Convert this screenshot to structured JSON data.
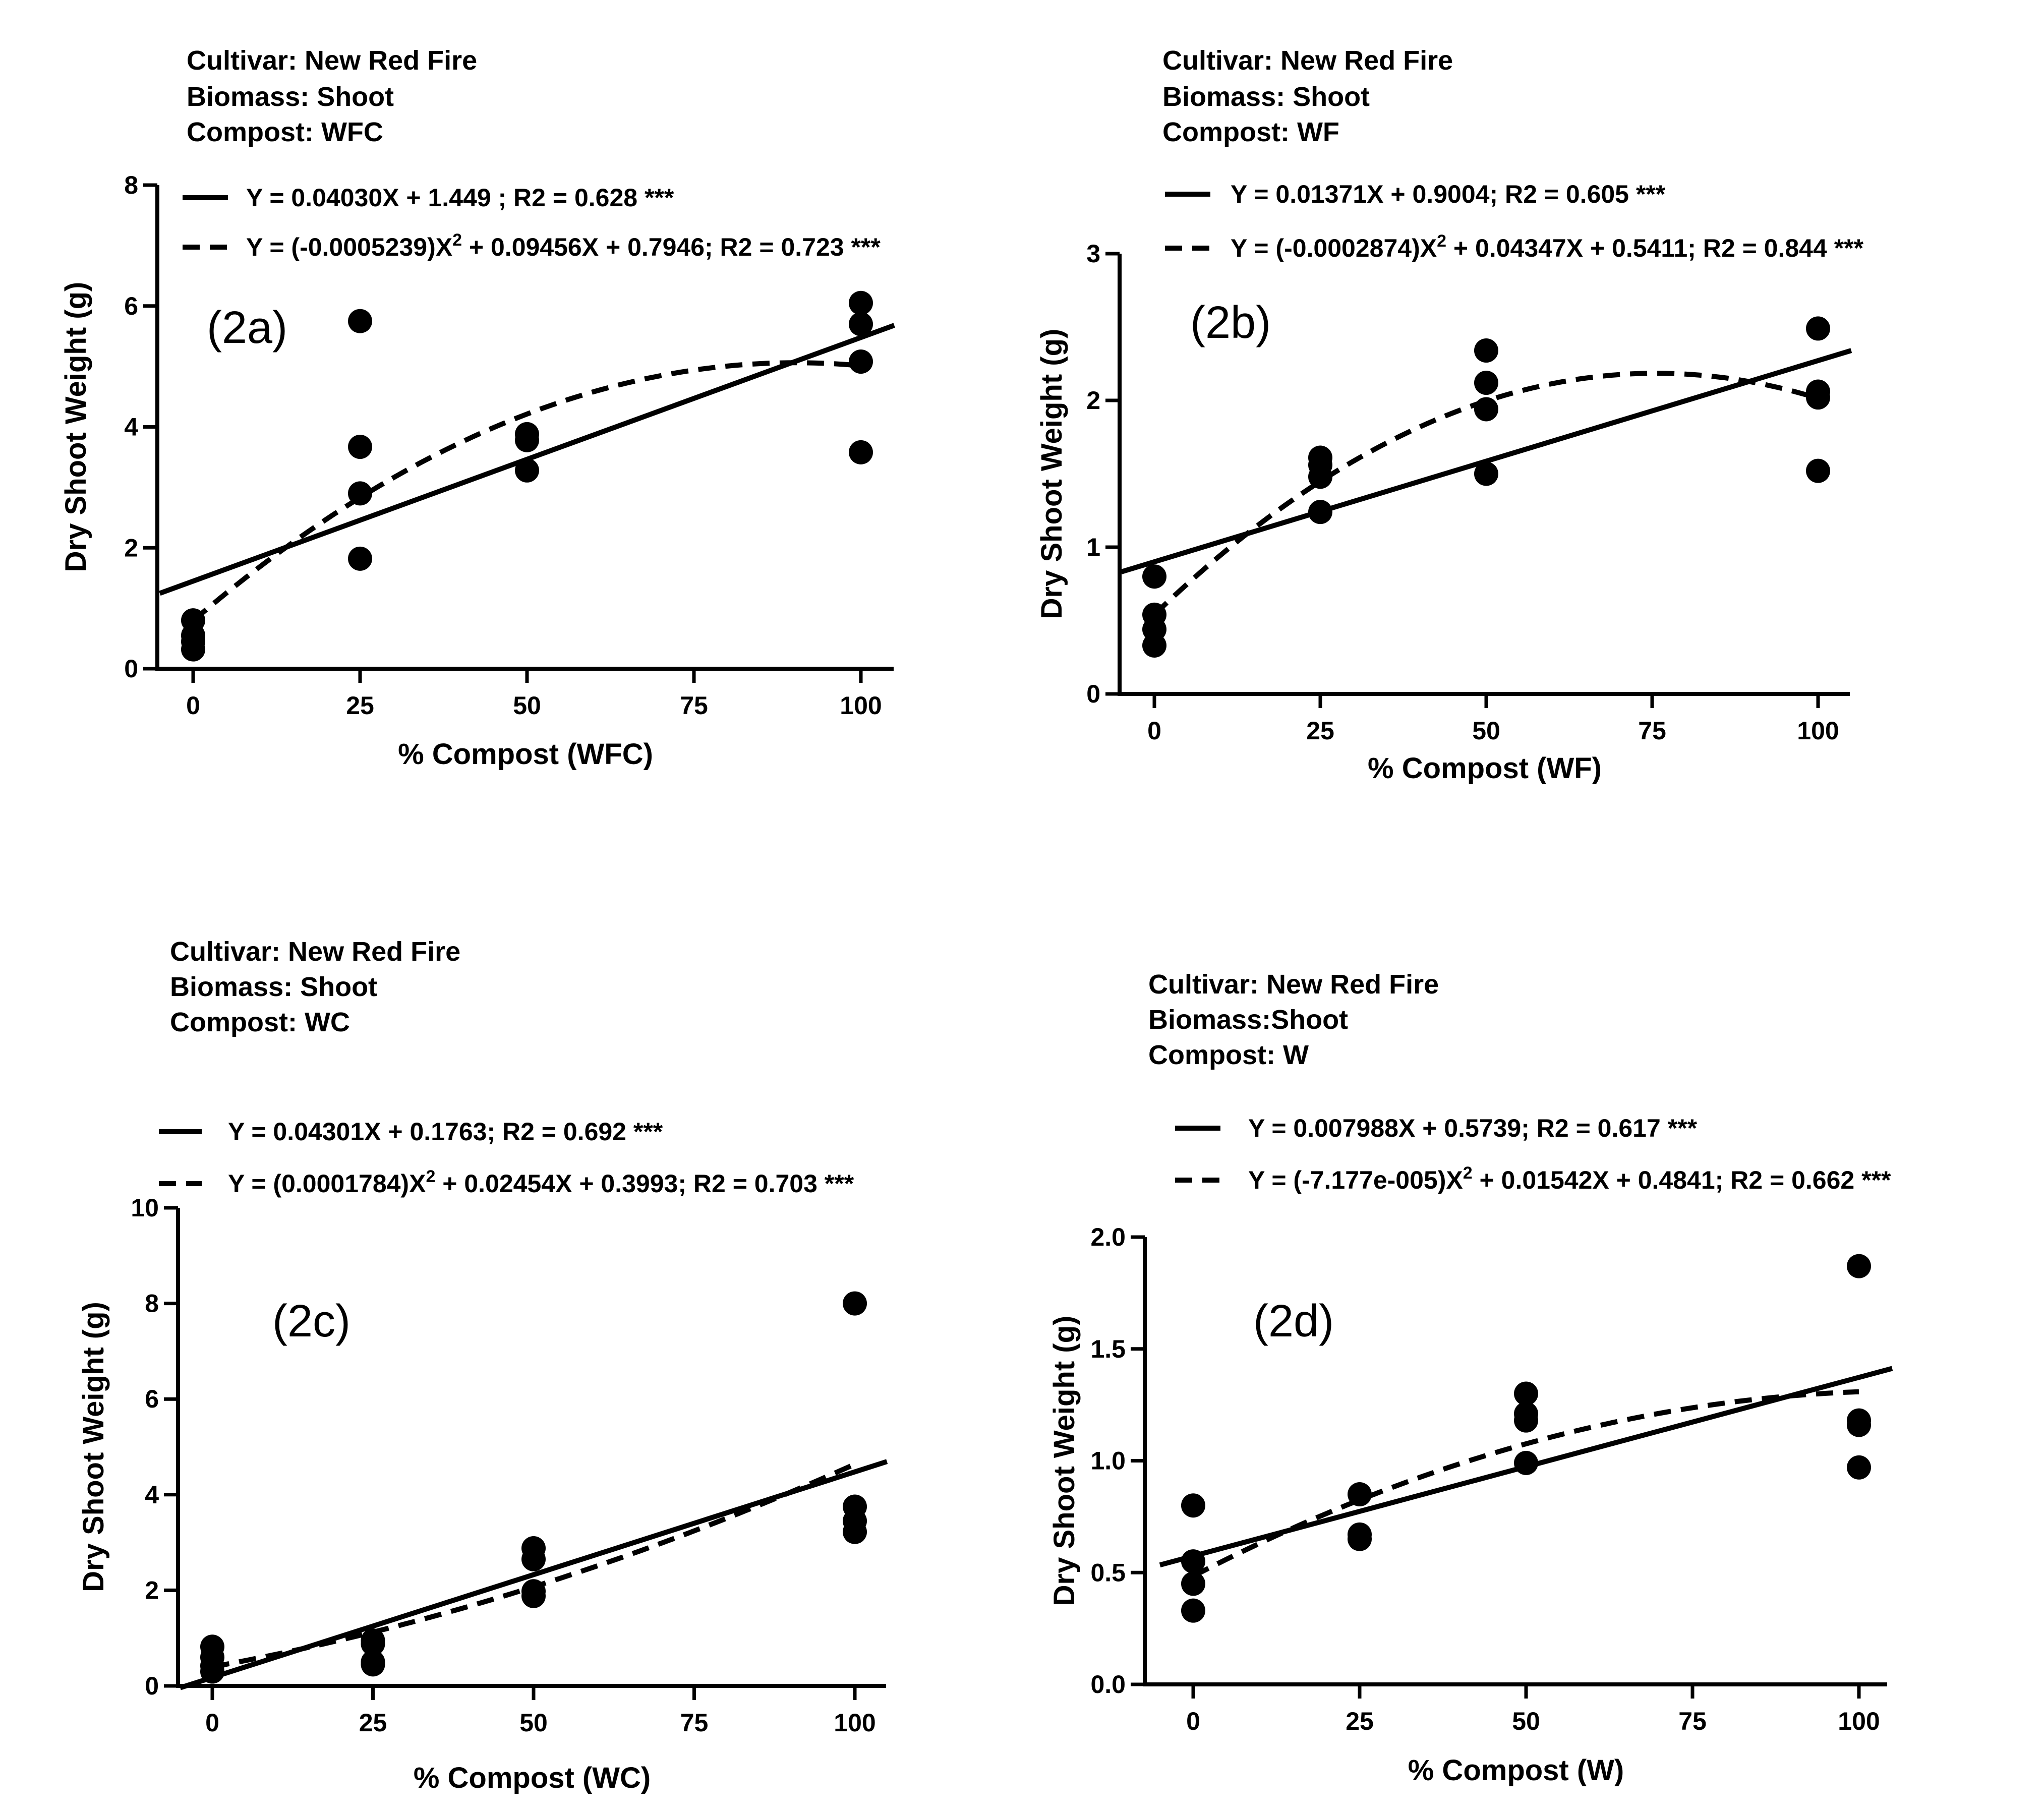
{
  "chart_data": [
    {
      "type": "scatter",
      "panel_label": "(2a)",
      "header": [
        "Cultivar: New Red Fire",
        "Biomass: Shoot",
        "Compost: WFC"
      ],
      "xlabel": "% Compost (WFC)",
      "ylabel": "Dry Shoot Weight (g)",
      "xlim": [
        -5,
        105
      ],
      "ylim": [
        0,
        8
      ],
      "xticks": [
        0,
        25,
        50,
        75,
        100
      ],
      "yticks": [
        0,
        2,
        4,
        6,
        8
      ],
      "ytick_labels": [
        "0",
        "2",
        "4",
        "6",
        "8"
      ],
      "legend": [
        {
          "style": "solid",
          "pre": "Y = 0.04030X + 1.449 ; R2 = 0.628 ***",
          "sup": "",
          "post": ""
        },
        {
          "style": "dashed",
          "pre": "Y = (-0.0005239)X",
          "sup": "2",
          "post": " + 0.09456X + 0.7946; R2 = 0.723 ***"
        }
      ],
      "linear": {
        "slope": 0.0403,
        "intercept": 1.449
      },
      "quadratic": {
        "a": -0.0005239,
        "b": 0.09456,
        "c": 0.7946
      },
      "points": [
        [
          0,
          0.8
        ],
        [
          0,
          0.55
        ],
        [
          0,
          0.45
        ],
        [
          0,
          0.32
        ],
        [
          25,
          5.75
        ],
        [
          25,
          3.67
        ],
        [
          25,
          2.9
        ],
        [
          25,
          1.82
        ],
        [
          50,
          3.88
        ],
        [
          50,
          3.78
        ],
        [
          50,
          3.28
        ],
        [
          100,
          6.05
        ],
        [
          100,
          5.7
        ],
        [
          100,
          5.08
        ],
        [
          100,
          3.58
        ]
      ]
    },
    {
      "type": "scatter",
      "panel_label": "(2b)",
      "header": [
        "Cultivar: New Red Fire",
        "Biomass: Shoot",
        "Compost: WF"
      ],
      "xlabel": "% Compost (WF)",
      "ylabel": "Dry Shoot Weight (g)",
      "xlim": [
        -5,
        105
      ],
      "ylim": [
        0,
        3
      ],
      "xticks": [
        0,
        25,
        50,
        75,
        100
      ],
      "yticks": [
        0,
        1,
        2,
        3
      ],
      "ytick_labels": [
        "0",
        "1",
        "2",
        "3"
      ],
      "legend": [
        {
          "style": "solid",
          "pre": "Y = 0.01371X + 0.9004; R2 = 0.605 ***",
          "sup": "",
          "post": ""
        },
        {
          "style": "dashed",
          "pre": "Y = (-0.0002874)X",
          "sup": "2",
          "post": " + 0.04347X + 0.5411; R2 = 0.844 ***"
        }
      ],
      "linear": {
        "slope": 0.01371,
        "intercept": 0.9004
      },
      "quadratic": {
        "a": -0.0002874,
        "b": 0.04347,
        "c": 0.5411
      },
      "points": [
        [
          0,
          0.8
        ],
        [
          0,
          0.54
        ],
        [
          0,
          0.44
        ],
        [
          0,
          0.33
        ],
        [
          25,
          1.61
        ],
        [
          25,
          1.56
        ],
        [
          25,
          1.48
        ],
        [
          25,
          1.24
        ],
        [
          50,
          2.34
        ],
        [
          50,
          2.12
        ],
        [
          50,
          1.94
        ],
        [
          50,
          1.5
        ],
        [
          100,
          2.49
        ],
        [
          100,
          2.06
        ],
        [
          100,
          2.02
        ],
        [
          100,
          1.52
        ]
      ]
    },
    {
      "type": "scatter",
      "panel_label": "(2c)",
      "header": [
        "Cultivar: New Red Fire",
        "Biomass: Shoot",
        "Compost: WC"
      ],
      "xlabel": "% Compost (WC)",
      "ylabel": "Dry Shoot Weight (g)",
      "xlim": [
        -5,
        105
      ],
      "ylim": [
        0,
        10
      ],
      "xticks": [
        0,
        25,
        50,
        75,
        100
      ],
      "yticks": [
        0,
        2,
        4,
        6,
        8,
        10
      ],
      "ytick_labels": [
        "0",
        "2",
        "4",
        "6",
        "8",
        "10"
      ],
      "legend": [
        {
          "style": "solid",
          "pre": "Y = 0.04301X + 0.1763; R2 = 0.692 ***",
          "sup": "",
          "post": ""
        },
        {
          "style": "dashed",
          "pre": "Y = (0.0001784)X",
          "sup": "2",
          "post": " + 0.02454X + 0.3993; R2 = 0.703 ***"
        }
      ],
      "linear": {
        "slope": 0.04301,
        "intercept": 0.1763
      },
      "quadratic": {
        "a": 0.0001784,
        "b": 0.02454,
        "c": 0.3993
      },
      "points": [
        [
          0,
          0.82
        ],
        [
          0,
          0.6
        ],
        [
          0,
          0.42
        ],
        [
          0,
          0.3
        ],
        [
          25,
          0.95
        ],
        [
          25,
          0.88
        ],
        [
          25,
          0.5
        ],
        [
          25,
          0.45
        ],
        [
          50,
          2.88
        ],
        [
          50,
          2.65
        ],
        [
          50,
          1.98
        ],
        [
          50,
          1.88
        ],
        [
          100,
          8.0
        ],
        [
          100,
          3.75
        ],
        [
          100,
          3.45
        ],
        [
          100,
          3.22
        ]
      ]
    },
    {
      "type": "scatter",
      "panel_label": "(2d)",
      "header": [
        "Cultivar: New Red Fire",
        "Biomass:Shoot",
        "Compost: W"
      ],
      "xlabel": "% Compost (W)",
      "ylabel": "Dry Shoot Weight (g)",
      "xlim": [
        -5,
        105
      ],
      "ylim": [
        0,
        2
      ],
      "xticks": [
        0,
        25,
        50,
        75,
        100
      ],
      "yticks": [
        0,
        0.5,
        1,
        1.5,
        2
      ],
      "ytick_labels": [
        "0.0",
        "0.5",
        "1.0",
        "1.5",
        "2.0"
      ],
      "legend": [
        {
          "style": "solid",
          "pre": "Y = 0.007988X + 0.5739; R2 = 0.617 ***",
          "sup": "",
          "post": ""
        },
        {
          "style": "dashed",
          "pre": "Y = (-7.177e-005)X",
          "sup": "2",
          "post": " + 0.01542X + 0.4841; R2 = 0.662 ***"
        }
      ],
      "linear": {
        "slope": 0.007988,
        "intercept": 0.5739
      },
      "quadratic": {
        "a": -7.177e-05,
        "b": 0.01542,
        "c": 0.4841
      },
      "points": [
        [
          0,
          0.8
        ],
        [
          0,
          0.55
        ],
        [
          0,
          0.45
        ],
        [
          0,
          0.33
        ],
        [
          25,
          0.85
        ],
        [
          25,
          0.67
        ],
        [
          25,
          0.65
        ],
        [
          50,
          1.3
        ],
        [
          50,
          1.21
        ],
        [
          50,
          1.18
        ],
        [
          50,
          0.99
        ],
        [
          100,
          1.87
        ],
        [
          100,
          1.18
        ],
        [
          100,
          1.16
        ],
        [
          100,
          0.97
        ]
      ]
    }
  ]
}
